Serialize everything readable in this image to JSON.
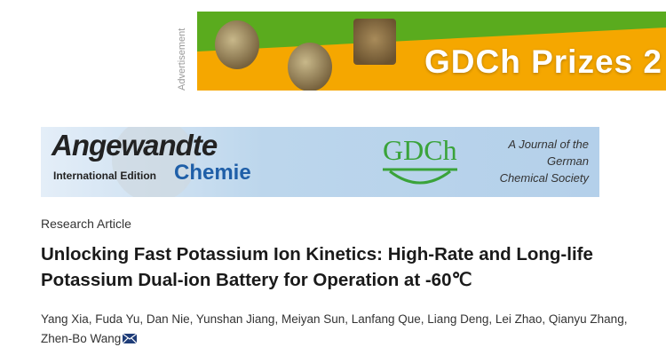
{
  "ad": {
    "label": "Advertisement",
    "title": "GDCh Prizes 2",
    "colors": {
      "green": "#5aab1e",
      "orange": "#f5a700"
    }
  },
  "journal_banner": {
    "name": "Angewandte",
    "edition": "International Edition",
    "subname": "Chemie",
    "society_logo": "GDCh",
    "tagline": [
      "A Journal of the",
      "German",
      "Chemical Society"
    ]
  },
  "article": {
    "type": "Research Article",
    "title": "Unlocking Fast Potassium Ion Kinetics: High-Rate and Long-life Potassium Dual-ion Battery for Operation at -60℃",
    "authors": "Yang Xia, Fuda Yu, Dan Nie, Yunshan Jiang, Meiyan Sun, Lanfang Que, Liang Deng, Lei Zhao, Qianyu Zhang, Zhen-Bo Wang",
    "corresponding_icon": "envelope-icon"
  }
}
